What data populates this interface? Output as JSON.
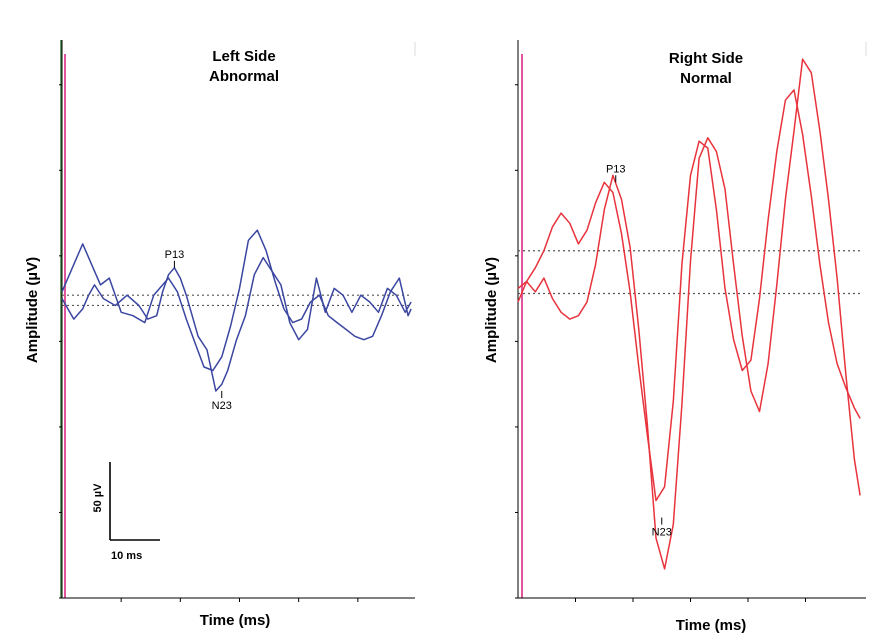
{
  "colors": {
    "left_trace": "#3a46a0",
    "right_trace": "#e8333c",
    "axis": "#000000",
    "stim_marker": "#e0559c",
    "stim_marker_left_edge": "#3a7a3a",
    "baseline": "#555555"
  },
  "chart_data": [
    {
      "type": "line",
      "panel": "left",
      "title": [
        "Left Side",
        "Abnormal"
      ],
      "xlabel": "Time (ms)",
      "ylabel": "Amplitude (µV)",
      "xlim": [
        0,
        60
      ],
      "ylim": [
        -175,
        150
      ],
      "x_tick_step_ms": 10,
      "y_tick_step_uV": 50,
      "grid": false,
      "baselines": [
        2,
        -4
      ],
      "peaks": [
        {
          "label": "P13",
          "x": 19,
          "y": 18
        },
        {
          "label": "N23",
          "x": 27,
          "y": -54
        }
      ],
      "series": [
        {
          "x": [
            0,
            2,
            3.5,
            4.5,
            5.5,
            7,
            9,
            11,
            13,
            14.5,
            16,
            17,
            18,
            19,
            20,
            21,
            23,
            24.5,
            26,
            27,
            28,
            29.5,
            31,
            32.5,
            34,
            35.5,
            37,
            38.5,
            40,
            41.5,
            43,
            44.5,
            46,
            47.5,
            49,
            50.5,
            52,
            53.5,
            55,
            56.5,
            58,
            59
          ],
          "y": [
            0,
            -12,
            -6,
            2,
            8,
            0,
            -4,
            2,
            -4,
            -12,
            -10,
            4,
            14,
            18,
            12,
            2,
            -22,
            -30,
            -54,
            -50,
            -42,
            -24,
            -10,
            14,
            24,
            16,
            8,
            -14,
            -24,
            -18,
            12,
            -8,
            6,
            2,
            -8,
            2,
            -2,
            -8,
            6,
            2,
            -8,
            -2
          ]
        },
        {
          "x": [
            0,
            2,
            3.5,
            5,
            6.5,
            8,
            10,
            12,
            14,
            15.5,
            16.5,
            18,
            19.5,
            21,
            22.5,
            24,
            25.5,
            27,
            28.5,
            30,
            31.5,
            33,
            34.5,
            36,
            37.5,
            39,
            40.5,
            42,
            43.5,
            45,
            46.5,
            48,
            49.5,
            51,
            52.5,
            54,
            55.5,
            57,
            58.5,
            59
          ],
          "y": [
            4,
            20,
            32,
            20,
            8,
            12,
            -8,
            -10,
            -14,
            2,
            6,
            12,
            4,
            -12,
            -26,
            -40,
            -42,
            -34,
            -16,
            6,
            34,
            40,
            28,
            10,
            -6,
            -14,
            -12,
            -2,
            2,
            -10,
            -14,
            -18,
            -22,
            -24,
            -22,
            -10,
            4,
            12,
            -10,
            -6
          ]
        }
      ],
      "scale_bar": {
        "time_label": "10 ms",
        "amp_label": "50 µV"
      }
    },
    {
      "type": "line",
      "panel": "right",
      "title": [
        "Right Side",
        "Normal"
      ],
      "xlabel": "Time (ms)",
      "ylabel": "Amplitude (µV)",
      "xlim": [
        0,
        60
      ],
      "ylim": [
        -175,
        150
      ],
      "x_tick_step_ms": 10,
      "y_tick_step_uV": 50,
      "grid": false,
      "baselines": [
        28,
        3
      ],
      "peaks": [
        {
          "label": "P13",
          "x": 17,
          "y": 68
        },
        {
          "label": "N23",
          "x": 25,
          "y": -128
        }
      ],
      "series": [
        {
          "x": [
            0,
            1.5,
            3,
            4.5,
            6,
            7.5,
            9,
            10.5,
            12,
            13.5,
            15,
            16.5,
            18,
            19.5,
            21,
            22.5,
            24,
            25.5,
            27,
            28.5,
            30,
            31.5,
            33,
            34.5,
            36,
            37.5,
            39,
            40.5,
            42,
            43.5,
            45,
            46.5,
            48,
            49.5,
            51,
            52.5,
            54,
            55.5,
            57,
            58.5,
            59.5
          ],
          "y": [
            6,
            10,
            18,
            28,
            42,
            50,
            44,
            32,
            40,
            56,
            68,
            62,
            38,
            4,
            -40,
            -80,
            -118,
            -110,
            -60,
            20,
            72,
            92,
            88,
            52,
            6,
            -24,
            -42,
            -36,
            0,
            46,
            86,
            116,
            122,
            96,
            60,
            20,
            -14,
            -38,
            -52,
            -64,
            -70
          ]
        },
        {
          "x": [
            0,
            1.5,
            3,
            4.5,
            6,
            7.5,
            9,
            10.5,
            12,
            13.5,
            15,
            16.5,
            18,
            19.5,
            21,
            22.5,
            24,
            25.5,
            27,
            28.5,
            30,
            31.5,
            33,
            34.5,
            36,
            37.5,
            39,
            40.5,
            42,
            43.5,
            45,
            46.5,
            48,
            49.5,
            51,
            52.5,
            54,
            55.5,
            57,
            58.5,
            59.5
          ],
          "y": [
            -2,
            10,
            4,
            12,
            0,
            -8,
            -12,
            -10,
            -2,
            20,
            52,
            72,
            58,
            30,
            -18,
            -74,
            -140,
            -158,
            -132,
            -62,
            22,
            82,
            94,
            86,
            64,
            20,
            -22,
            -54,
            -66,
            -38,
            8,
            58,
            98,
            140,
            132,
            98,
            58,
            12,
            -44,
            -94,
            -115
          ]
        }
      ]
    }
  ]
}
